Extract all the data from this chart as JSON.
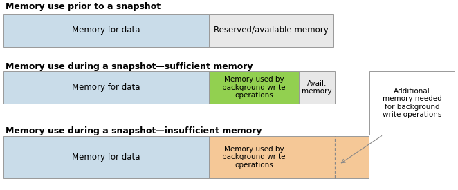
{
  "title1": "Memory use prior to a snapshot",
  "title2": "Memory use during a snapshot—sufficient memory",
  "title3": "Memory use during a snapshot—insufficient memory",
  "color_light_blue": "#c9dce9",
  "color_light_gray": "#e8e8e8",
  "color_green": "#92d050",
  "color_orange": "#f5c897",
  "color_white": "#ffffff",
  "border_color": "#999999",
  "label_data": "Memory for data",
  "label_reserved": "Reserved/available memory",
  "label_bg_write": "Memory used by\nbackground write\noperations",
  "label_avail": "Avail.\nmemory",
  "label_additional": "Additional\nmemory needed\nfor background\nwrite operations",
  "fig_width": 6.62,
  "fig_height": 2.75
}
